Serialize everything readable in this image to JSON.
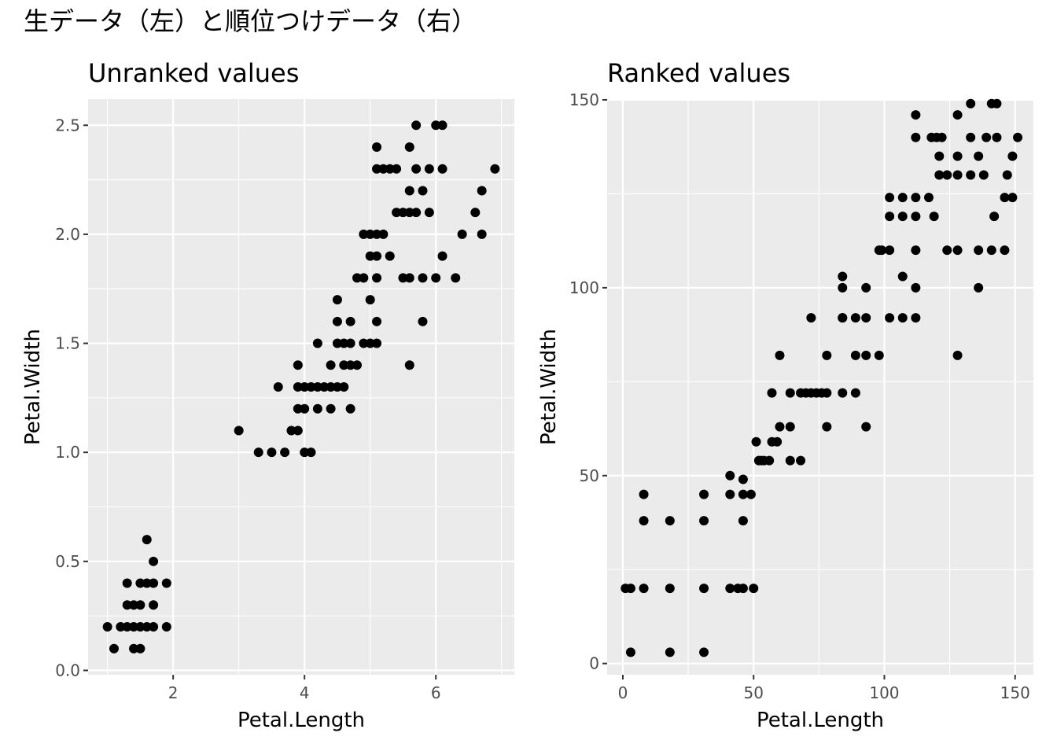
{
  "main_title": "生データ（左）と順位つけデータ（右）",
  "chart_data": [
    {
      "type": "scatter",
      "title": "Unranked values",
      "xlabel": "Petal.Length",
      "ylabel": "Petal.Width",
      "xlim": [
        0.705,
        7.195
      ],
      "ylim": [
        -0.02,
        2.62
      ],
      "x_ticks": [
        2,
        4,
        6
      ],
      "x_tick_labels": [
        "2",
        "4",
        "6"
      ],
      "y_ticks": [
        0,
        0.5,
        1,
        1.5,
        2,
        2.5
      ],
      "y_tick_labels": [
        "0.0",
        "0.5",
        "1.0",
        "1.5",
        "2.0",
        "2.5"
      ],
      "grid": true,
      "points": [
        [
          1.0,
          0.2
        ],
        [
          1.1,
          0.1
        ],
        [
          1.2,
          0.2
        ],
        [
          1.3,
          0.2
        ],
        [
          1.4,
          0.2
        ],
        [
          1.5,
          0.2
        ],
        [
          1.6,
          0.2
        ],
        [
          1.7,
          0.2
        ],
        [
          1.9,
          0.2
        ],
        [
          1.3,
          0.3
        ],
        [
          1.4,
          0.3
        ],
        [
          1.5,
          0.3
        ],
        [
          1.7,
          0.3
        ],
        [
          1.3,
          0.4
        ],
        [
          1.5,
          0.4
        ],
        [
          1.6,
          0.4
        ],
        [
          1.7,
          0.4
        ],
        [
          1.9,
          0.4
        ],
        [
          1.4,
          0.1
        ],
        [
          1.5,
          0.1
        ],
        [
          1.7,
          0.5
        ],
        [
          1.6,
          0.6
        ],
        [
          3.0,
          1.1
        ],
        [
          3.3,
          1.0
        ],
        [
          3.5,
          1.0
        ],
        [
          3.7,
          1.0
        ],
        [
          4.0,
          1.0
        ],
        [
          4.1,
          1.0
        ],
        [
          3.8,
          1.1
        ],
        [
          3.9,
          1.1
        ],
        [
          3.9,
          1.2
        ],
        [
          4.0,
          1.2
        ],
        [
          4.2,
          1.2
        ],
        [
          4.4,
          1.2
        ],
        [
          4.7,
          1.2
        ],
        [
          3.6,
          1.3
        ],
        [
          3.9,
          1.3
        ],
        [
          4.0,
          1.3
        ],
        [
          4.1,
          1.3
        ],
        [
          4.2,
          1.3
        ],
        [
          4.3,
          1.3
        ],
        [
          4.4,
          1.3
        ],
        [
          4.5,
          1.3
        ],
        [
          4.6,
          1.3
        ],
        [
          3.9,
          1.4
        ],
        [
          4.4,
          1.4
        ],
        [
          4.6,
          1.4
        ],
        [
          4.7,
          1.4
        ],
        [
          4.8,
          1.4
        ],
        [
          5.6,
          1.4
        ],
        [
          4.2,
          1.5
        ],
        [
          4.5,
          1.5
        ],
        [
          4.6,
          1.5
        ],
        [
          4.7,
          1.5
        ],
        [
          4.9,
          1.5
        ],
        [
          5.0,
          1.5
        ],
        [
          5.1,
          1.5
        ],
        [
          4.5,
          1.6
        ],
        [
          4.7,
          1.6
        ],
        [
          5.1,
          1.6
        ],
        [
          5.8,
          1.6
        ],
        [
          4.5,
          1.7
        ],
        [
          5.0,
          1.7
        ],
        [
          4.8,
          1.8
        ],
        [
          4.9,
          1.8
        ],
        [
          5.1,
          1.8
        ],
        [
          5.5,
          1.8
        ],
        [
          5.6,
          1.8
        ],
        [
          5.8,
          1.8
        ],
        [
          6.0,
          1.8
        ],
        [
          6.3,
          1.8
        ],
        [
          5.0,
          1.9
        ],
        [
          5.1,
          1.9
        ],
        [
          5.3,
          1.9
        ],
        [
          6.1,
          1.9
        ],
        [
          4.9,
          2.0
        ],
        [
          5.0,
          2.0
        ],
        [
          5.1,
          2.0
        ],
        [
          5.2,
          2.0
        ],
        [
          6.4,
          2.0
        ],
        [
          6.7,
          2.0
        ],
        [
          5.4,
          2.1
        ],
        [
          5.5,
          2.1
        ],
        [
          5.6,
          2.1
        ],
        [
          5.7,
          2.1
        ],
        [
          5.9,
          2.1
        ],
        [
          6.6,
          2.1
        ],
        [
          5.6,
          2.2
        ],
        [
          5.8,
          2.2
        ],
        [
          6.7,
          2.2
        ],
        [
          5.1,
          2.3
        ],
        [
          5.2,
          2.3
        ],
        [
          5.3,
          2.3
        ],
        [
          5.4,
          2.3
        ],
        [
          5.7,
          2.3
        ],
        [
          5.9,
          2.3
        ],
        [
          6.1,
          2.3
        ],
        [
          6.9,
          2.3
        ],
        [
          5.1,
          2.4
        ],
        [
          5.6,
          2.4
        ],
        [
          5.7,
          2.5
        ],
        [
          6.0,
          2.5
        ],
        [
          6.1,
          2.5
        ]
      ]
    },
    {
      "type": "scatter",
      "title": "Ranked values",
      "xlabel": "Petal.Length",
      "ylabel": "Petal.Width",
      "xlim": [
        -6,
        157
      ],
      "ylim": [
        -3,
        150.2
      ],
      "x_ticks": [
        0,
        50,
        100,
        150
      ],
      "x_tick_labels": [
        "0",
        "50",
        "100",
        "150"
      ],
      "y_ticks": [
        0,
        50,
        100,
        150
      ],
      "y_tick_labels": [
        "0",
        "50",
        "100",
        "150"
      ],
      "grid": true,
      "points": [
        [
          1,
          20
        ],
        [
          3,
          20
        ],
        [
          8,
          20
        ],
        [
          18,
          20
        ],
        [
          31,
          20
        ],
        [
          41,
          20
        ],
        [
          44,
          20
        ],
        [
          46,
          20
        ],
        [
          50,
          20
        ],
        [
          3,
          3
        ],
        [
          18,
          3
        ],
        [
          31,
          3
        ],
        [
          8,
          38
        ],
        [
          18,
          38
        ],
        [
          31,
          38
        ],
        [
          46,
          38
        ],
        [
          8,
          45
        ],
        [
          31,
          45
        ],
        [
          41,
          45
        ],
        [
          46,
          45
        ],
        [
          49,
          45
        ],
        [
          46,
          49
        ],
        [
          41,
          50
        ],
        [
          51,
          59
        ],
        [
          52,
          54
        ],
        [
          53,
          54
        ],
        [
          54,
          54
        ],
        [
          56,
          54
        ],
        [
          64,
          54
        ],
        [
          68,
          54
        ],
        [
          57,
          59
        ],
        [
          59,
          59
        ],
        [
          60,
          63
        ],
        [
          64,
          63
        ],
        [
          78,
          63
        ],
        [
          93,
          63
        ],
        [
          57,
          72
        ],
        [
          64,
          72
        ],
        [
          68,
          72
        ],
        [
          70,
          72
        ],
        [
          72,
          72
        ],
        [
          74,
          72
        ],
        [
          76,
          72
        ],
        [
          78,
          72
        ],
        [
          84,
          72
        ],
        [
          89,
          72
        ],
        [
          60,
          82
        ],
        [
          78,
          82
        ],
        [
          89,
          82
        ],
        [
          93,
          82
        ],
        [
          98,
          82
        ],
        [
          128,
          82
        ],
        [
          72,
          92
        ],
        [
          84,
          92
        ],
        [
          89,
          92
        ],
        [
          93,
          92
        ],
        [
          102,
          92
        ],
        [
          107,
          92
        ],
        [
          112,
          92
        ],
        [
          84,
          92
        ],
        [
          84,
          100
        ],
        [
          93,
          100
        ],
        [
          112,
          100
        ],
        [
          136,
          100
        ],
        [
          84,
          103
        ],
        [
          107,
          103
        ],
        [
          98,
          110
        ],
        [
          99,
          110
        ],
        [
          102,
          110
        ],
        [
          112,
          110
        ],
        [
          124,
          110
        ],
        [
          128,
          110
        ],
        [
          136,
          110
        ],
        [
          141,
          110
        ],
        [
          146,
          110
        ],
        [
          102,
          119
        ],
        [
          107,
          119
        ],
        [
          112,
          119
        ],
        [
          119,
          119
        ],
        [
          142,
          119
        ],
        [
          102,
          124
        ],
        [
          107,
          124
        ],
        [
          112,
          124
        ],
        [
          117,
          124
        ],
        [
          146,
          124
        ],
        [
          149,
          124
        ],
        [
          121,
          130
        ],
        [
          124,
          130
        ],
        [
          128,
          130
        ],
        [
          133,
          130
        ],
        [
          138,
          130
        ],
        [
          147,
          130
        ],
        [
          121,
          135
        ],
        [
          128,
          135
        ],
        [
          136,
          135
        ],
        [
          149,
          135
        ],
        [
          112,
          140
        ],
        [
          118,
          140
        ],
        [
          120,
          140
        ],
        [
          122,
          140
        ],
        [
          133,
          140
        ],
        [
          139,
          140
        ],
        [
          143,
          140
        ],
        [
          151,
          140
        ],
        [
          112,
          146
        ],
        [
          128,
          146
        ],
        [
          133,
          149
        ],
        [
          141,
          149
        ],
        [
          143,
          149
        ]
      ]
    }
  ]
}
